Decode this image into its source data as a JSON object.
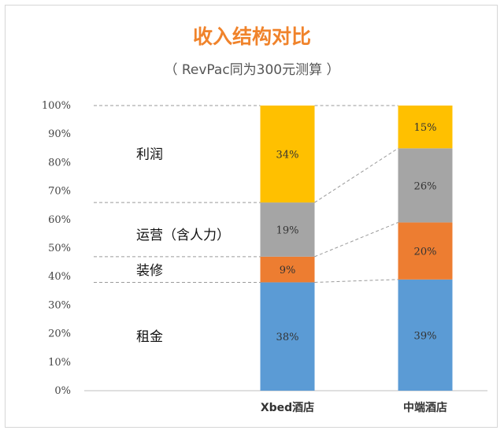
{
  "chart_data": {
    "type": "bar",
    "stacked": true,
    "title": "收入结构对比",
    "subtitle": "（ RevPac同为300元测算 ）",
    "categories": [
      "Xbed酒店",
      "中端酒店"
    ],
    "series": [
      {
        "name": "租金",
        "values": [
          38,
          39
        ],
        "labels": [
          "38%",
          "39%"
        ],
        "color": "#5b9bd5"
      },
      {
        "name": "装修",
        "values": [
          9,
          20
        ],
        "labels": [
          "9%",
          "20%"
        ],
        "color": "#ed7d31"
      },
      {
        "name": "运营（含人力）",
        "values": [
          19,
          26
        ],
        "labels": [
          "19%",
          "26%"
        ],
        "color": "#a5a5a5"
      },
      {
        "name": "利润",
        "values": [
          34,
          15
        ],
        "labels": [
          "34%",
          "15%"
        ],
        "color": "#ffc000"
      }
    ],
    "yticks": [
      "0%",
      "10%",
      "20%",
      "30%",
      "40%",
      "50%",
      "60%",
      "70%",
      "80%",
      "90%",
      "100%"
    ],
    "ylim": [
      0,
      100
    ],
    "legend": "inline-left",
    "grid": false,
    "series_connector_lines": true
  }
}
